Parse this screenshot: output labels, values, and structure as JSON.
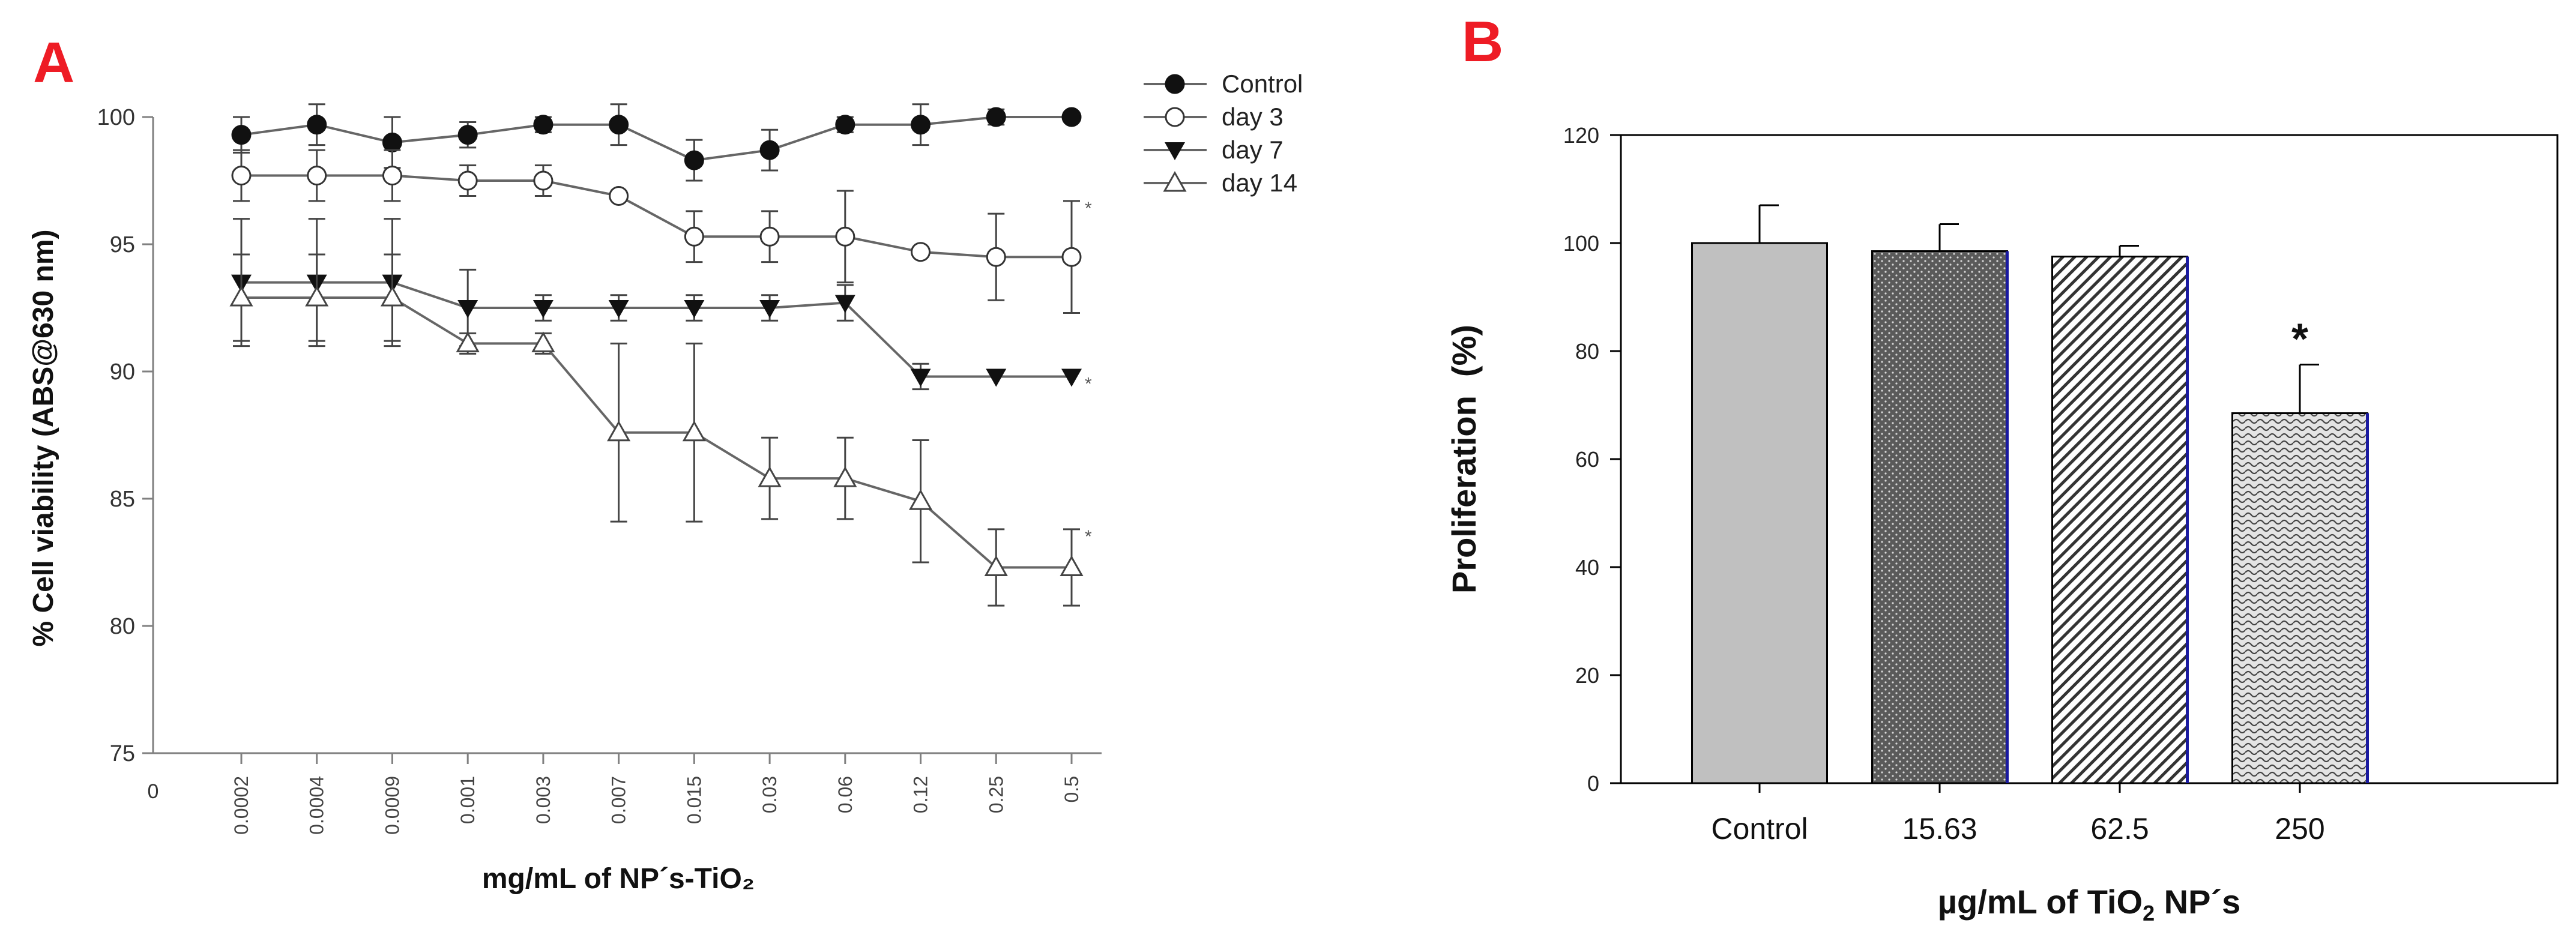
{
  "panels": {
    "a_label": "A",
    "b_label": "B",
    "label_color": "#ee1c25"
  },
  "chart_data": [
    {
      "type": "line",
      "panel": "A",
      "title": "",
      "xlabel": "mg/mL of NP´s-TiO₂",
      "ylabel": "% Cell viability (ABS@630 nm)",
      "x_origin_label": "0",
      "categories": [
        "0.0002",
        "0.0004",
        "0.0009",
        "0.001",
        "0.003",
        "0.007",
        "0.015",
        "0.03",
        "0.06",
        "0.12",
        "0.25",
        "0.5"
      ],
      "ylim": [
        75,
        100
      ],
      "yticks": [
        75,
        80,
        85,
        90,
        95,
        100
      ],
      "legend_position": "top-right",
      "series": [
        {
          "name": "Control",
          "marker": "circle-filled",
          "values": [
            99.3,
            99.7,
            99.0,
            99.3,
            99.7,
            99.7,
            98.3,
            98.7,
            99.7,
            99.7,
            100,
            100
          ],
          "errors": [
            0.7,
            0.8,
            1.0,
            0.5,
            0.3,
            0.8,
            0.8,
            0.8,
            0.3,
            0.8,
            0.3,
            0
          ]
        },
        {
          "name": "day 3",
          "marker": "circle-open",
          "values": [
            97.7,
            97.7,
            97.7,
            97.5,
            97.5,
            96.9,
            95.3,
            95.3,
            95.3,
            94.7,
            94.5,
            94.5
          ],
          "errors": [
            1.0,
            1.0,
            1.0,
            0.6,
            0.6,
            0,
            1.0,
            1.0,
            1.8,
            0,
            1.7,
            2.2
          ],
          "significance": "*"
        },
        {
          "name": "day 7",
          "marker": "triangle-down-filled",
          "values": [
            93.5,
            93.5,
            93.5,
            92.5,
            92.5,
            92.5,
            92.5,
            92.5,
            92.7,
            89.8,
            89.8,
            89.8
          ],
          "errors": [
            2.5,
            2.5,
            2.5,
            1.5,
            0.5,
            0.5,
            0.5,
            0.5,
            0.7,
            0.5,
            0,
            0
          ],
          "significance": "*"
        },
        {
          "name": "day 14",
          "marker": "triangle-up-open",
          "values": [
            92.9,
            92.9,
            92.9,
            91.1,
            91.1,
            87.6,
            87.6,
            85.8,
            85.8,
            84.9,
            82.3,
            82.3
          ],
          "errors": [
            1.7,
            1.7,
            1.7,
            0.4,
            0.4,
            3.5,
            3.5,
            1.6,
            1.6,
            2.4,
            1.5,
            1.5
          ],
          "significance": "*"
        }
      ]
    },
    {
      "type": "bar",
      "panel": "B",
      "title": "",
      "xlabel_parts": [
        "µg/mL of TiO",
        "2",
        " NP´s"
      ],
      "ylabel": "Proliferation  (%)",
      "categories": [
        "Control",
        "15.63",
        "62.5",
        "250"
      ],
      "values": [
        100,
        98.5,
        97.5,
        68.5
      ],
      "errors": [
        7.0,
        5.0,
        2.0,
        9.0
      ],
      "patterns": [
        "solid-gray",
        "dots-dark",
        "diagonal-hatch",
        "wavy"
      ],
      "bar_fill": "#c0c0c0",
      "annotations": [
        {
          "category": "250",
          "text": "*"
        }
      ],
      "ylim": [
        0,
        120
      ],
      "yticks": [
        0,
        20,
        40,
        60,
        80,
        100,
        120
      ]
    }
  ]
}
